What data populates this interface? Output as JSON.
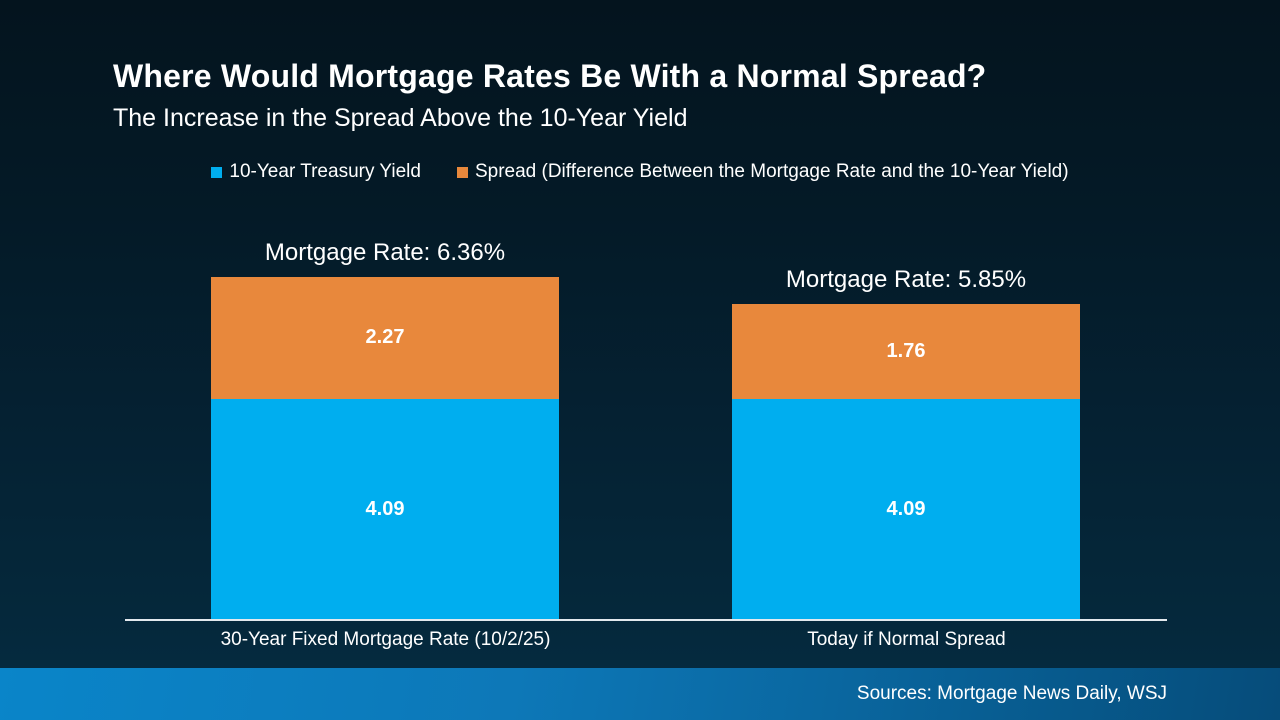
{
  "header": {
    "title": "Where Would Mortgage Rates Be With a Normal Spread?",
    "subtitle": "The Increase in the Spread Above the 10-Year Yield"
  },
  "chart_data": {
    "type": "bar",
    "stacked": true,
    "title": "Where Would Mortgage Rates Be With a Normal Spread?",
    "subtitle": "The Increase in the Spread Above the 10-Year Yield",
    "categories": [
      "30-Year Fixed Mortgage Rate (10/2/25)",
      "Today if Normal Spread"
    ],
    "series": [
      {
        "name": "10-Year Treasury Yield",
        "color": "#00AEEF",
        "values": [
          4.09,
          4.09
        ]
      },
      {
        "name": "Spread (Difference Between the Mortgage Rate and the 10-Year Yield)",
        "color": "#E8883C",
        "values": [
          2.27,
          1.76
        ]
      }
    ],
    "bar_totals": [
      "Mortgage Rate: 6.36%",
      "Mortgage Rate: 5.85%"
    ],
    "legend_position": "top",
    "grid": false,
    "ylim": [
      0,
      6.36
    ],
    "value_label_color": "#FFFFFF"
  },
  "footer": {
    "sources": "Sources: Mortgage News Daily, WSJ"
  },
  "colors": {
    "background_top": "#04141E",
    "background_bottom": "#052A3F",
    "footer_gradient_left": "#0A85C9",
    "footer_gradient_right": "#064C7A",
    "axis_line": "#E3E9EE",
    "text": "#FFFFFF"
  }
}
